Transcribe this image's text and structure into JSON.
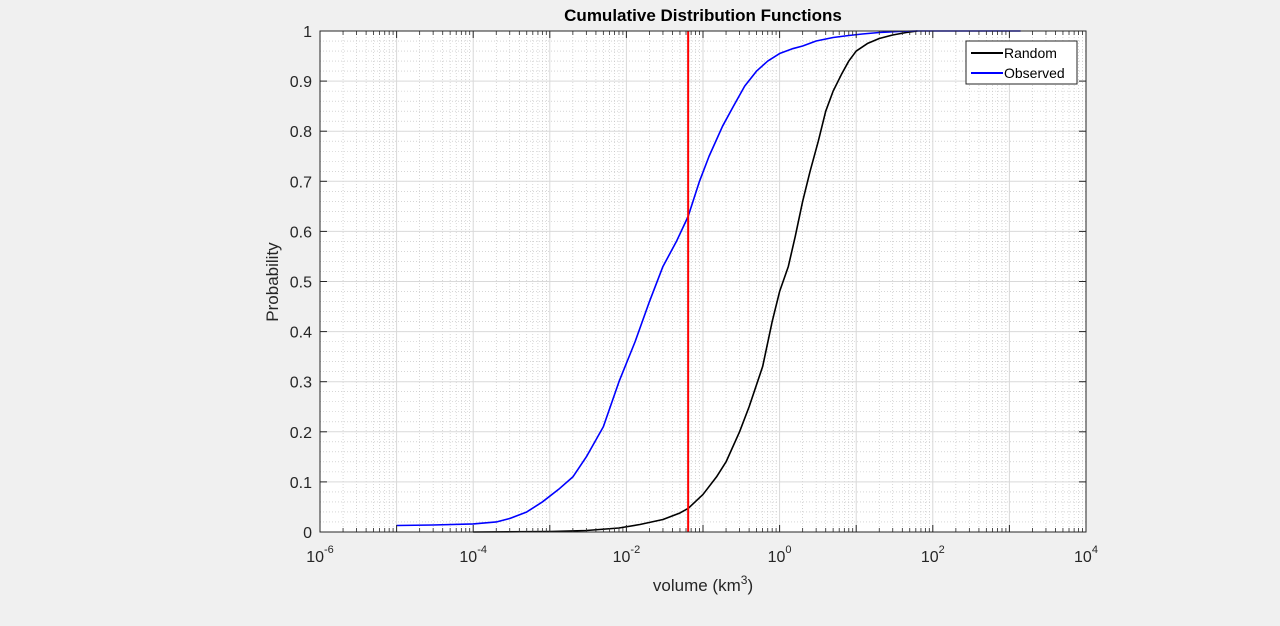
{
  "chart_data": {
    "type": "line",
    "title": "Cumulative Distribution Functions",
    "xlabel": {
      "base": "volume (km",
      "sup": "3",
      "suffix": ")"
    },
    "ylabel": "Probability",
    "xscale": "log",
    "xlim": [
      1e-06,
      10000.0
    ],
    "ylim": [
      0,
      1
    ],
    "grid": {
      "major": true,
      "minor": true
    },
    "legend_position": "top-right",
    "x_ticks": [
      {
        "value": 1e-06,
        "base": "10",
        "exp": "-6"
      },
      {
        "value": 0.0001,
        "base": "10",
        "exp": "-4"
      },
      {
        "value": 0.01,
        "base": "10",
        "exp": "-2"
      },
      {
        "value": 1,
        "base": "10",
        "exp": "0"
      },
      {
        "value": 100,
        "base": "10",
        "exp": "2"
      },
      {
        "value": 10000,
        "base": "10",
        "exp": "4"
      }
    ],
    "y_ticks": [
      "0",
      "0.1",
      "0.2",
      "0.3",
      "0.4",
      "0.5",
      "0.6",
      "0.7",
      "0.8",
      "0.9",
      "1"
    ],
    "series": [
      {
        "name": "Random",
        "color": "#000000",
        "x": [
          0.0001,
          0.001,
          0.003,
          0.008,
          0.015,
          0.03,
          0.05,
          0.064,
          0.1,
          0.15,
          0.2,
          0.3,
          0.4,
          0.6,
          0.8,
          1.0,
          1.3,
          1.6,
          2.0,
          2.5,
          3.2,
          4.0,
          5.0,
          6.5,
          8.0,
          10,
          14,
          20,
          30,
          45,
          63
        ],
        "y": [
          0,
          0.001,
          0.003,
          0.008,
          0.015,
          0.025,
          0.038,
          0.047,
          0.075,
          0.11,
          0.14,
          0.2,
          0.25,
          0.33,
          0.42,
          0.48,
          0.53,
          0.59,
          0.66,
          0.72,
          0.78,
          0.84,
          0.88,
          0.915,
          0.94,
          0.96,
          0.975,
          0.985,
          0.992,
          0.997,
          1.0
        ]
      },
      {
        "name": "Observed",
        "color": "#0000ff",
        "x": [
          1e-05,
          3e-05,
          0.0001,
          0.0002,
          0.0003,
          0.0005,
          0.0008,
          0.0013,
          0.002,
          0.003,
          0.005,
          0.008,
          0.013,
          0.02,
          0.03,
          0.045,
          0.064,
          0.09,
          0.12,
          0.18,
          0.25,
          0.35,
          0.5,
          0.7,
          1.0,
          1.5,
          2,
          3,
          5,
          8,
          12,
          20,
          35,
          60,
          150,
          400,
          1000,
          1400
        ],
        "y": [
          0.013,
          0.014,
          0.016,
          0.02,
          0.027,
          0.04,
          0.06,
          0.085,
          0.11,
          0.15,
          0.21,
          0.3,
          0.38,
          0.46,
          0.53,
          0.58,
          0.63,
          0.7,
          0.75,
          0.81,
          0.85,
          0.89,
          0.92,
          0.94,
          0.955,
          0.965,
          0.97,
          0.98,
          0.987,
          0.991,
          0.994,
          0.997,
          0.999,
          1.0,
          1.0,
          1.0,
          1.0,
          1.0
        ]
      }
    ],
    "reference_line": {
      "x": 0.064,
      "color": "#ff0000"
    }
  }
}
